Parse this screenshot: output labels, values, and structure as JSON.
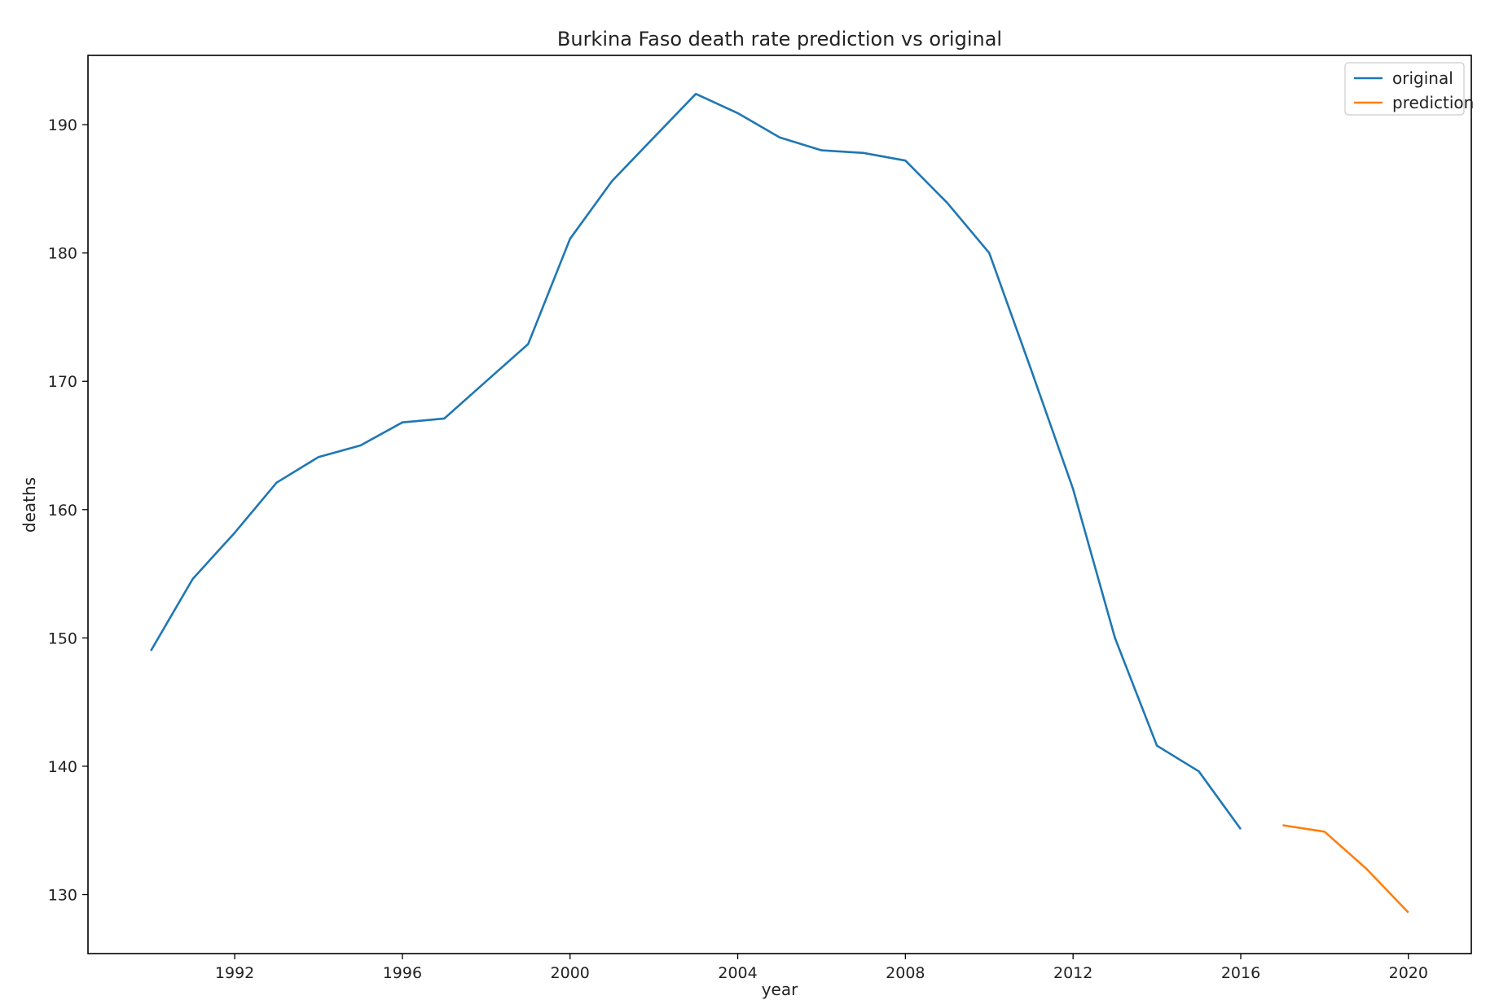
{
  "chart_data": {
    "type": "line",
    "title": "Burkina Faso death rate prediction vs original",
    "xlabel": "year",
    "ylabel": "deaths",
    "xlim": [
      1988.5,
      2021.5
    ],
    "ylim": [
      125.4,
      195.4
    ],
    "xticks": [
      1992,
      1996,
      2000,
      2004,
      2008,
      2012,
      2016,
      2020
    ],
    "yticks": [
      130,
      140,
      150,
      160,
      170,
      180,
      190
    ],
    "grid": false,
    "legend_position": "top-right",
    "series": [
      {
        "name": "original",
        "color": "#1f77b4",
        "x": [
          1990,
          1991,
          1992,
          1993,
          1994,
          1995,
          1996,
          1997,
          1998,
          1999,
          2000,
          2001,
          2002,
          2003,
          2004,
          2005,
          2006,
          2007,
          2008,
          2009,
          2010,
          2011,
          2012,
          2013,
          2014,
          2015,
          2016
        ],
        "y": [
          149.0,
          154.6,
          158.2,
          162.1,
          164.1,
          165.0,
          166.8,
          167.1,
          170.0,
          172.9,
          181.1,
          185.6,
          189.0,
          192.4,
          190.9,
          189.0,
          188.0,
          187.8,
          187.2,
          183.9,
          180.0,
          170.9,
          161.6,
          150.0,
          141.6,
          139.6,
          135.1
        ]
      },
      {
        "name": "prediction",
        "color": "#ff7f0e",
        "x": [
          2017,
          2018,
          2019,
          2020
        ],
        "y": [
          135.4,
          134.9,
          132.0,
          128.6
        ]
      }
    ]
  }
}
